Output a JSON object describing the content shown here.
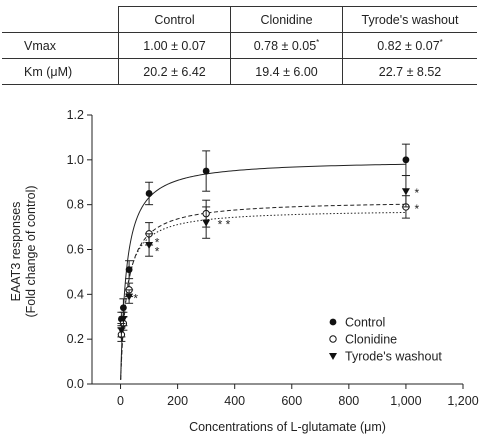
{
  "table": {
    "headers": [
      "",
      "Control",
      "Clonidine",
      "Tyrode's washout"
    ],
    "rows": [
      {
        "label": "Vmax",
        "control": "1.00 ± 0.07",
        "clonidine": "0.78 ± 0.05",
        "clonidine_mark": "*",
        "washout": "0.82 ± 0.07",
        "washout_mark": "*"
      },
      {
        "label": "Km (μM)",
        "control": "20.2 ± 6.42",
        "clonidine": "19.4 ± 6.00",
        "clonidine_mark": "",
        "washout": "22.7 ± 8.52",
        "washout_mark": ""
      }
    ]
  },
  "chart_data": {
    "type": "scatter",
    "xlabel": "Concentrations of L-glutamate (μm)",
    "ylabel_lines": [
      "EAAT3 responses",
      "(Fold change of control)"
    ],
    "xlim": [
      -100,
      1200
    ],
    "ylim": [
      0,
      1.2
    ],
    "xticks": [
      0,
      200,
      400,
      600,
      800,
      1000,
      1200
    ],
    "xtick_labels": [
      "0",
      "200",
      "400",
      "600",
      "800",
      "1,000",
      "1,200"
    ],
    "yticks": [
      0,
      0.2,
      0.4,
      0.6,
      0.8,
      1.0,
      1.2
    ],
    "ytick_labels": [
      "0.0",
      "0.2",
      "0.4",
      "0.6",
      "0.8",
      "1.0",
      "1.2"
    ],
    "legend_position": "bottom-right",
    "series": [
      {
        "name": "Control",
        "marker": "filled-circle",
        "line": "solid",
        "vmax": 1.0,
        "km": 20.2,
        "x": [
          3,
          10,
          30,
          100,
          300,
          1000
        ],
        "y": [
          0.29,
          0.34,
          0.51,
          0.85,
          0.95,
          1.0
        ],
        "err": [
          0.03,
          0.04,
          0.04,
          0.05,
          0.09,
          0.07
        ]
      },
      {
        "name": "Clonidine",
        "marker": "open-circle",
        "line": "dotted",
        "vmax": 0.78,
        "km": 19.4,
        "x": [
          3,
          10,
          30,
          100,
          300,
          1000
        ],
        "y": [
          0.22,
          0.27,
          0.42,
          0.67,
          0.76,
          0.79
        ],
        "err": [
          0.03,
          0.03,
          0.03,
          0.05,
          0.06,
          0.05
        ]
      },
      {
        "name": "Tyrode's washout",
        "marker": "filled-triangle-down",
        "line": "dashed",
        "vmax": 0.82,
        "km": 22.7,
        "x": [
          3,
          10,
          30,
          100,
          300,
          1000
        ],
        "y": [
          0.24,
          0.29,
          0.39,
          0.62,
          0.72,
          0.86
        ],
        "err": [
          0.03,
          0.03,
          0.03,
          0.05,
          0.07,
          0.07
        ]
      }
    ],
    "annotations": [
      {
        "text": "*",
        "x": 45,
        "y": 0.39
      },
      {
        "text": "*",
        "x": 120,
        "y": 0.64
      },
      {
        "text": "*",
        "x": 120,
        "y": 0.6
      },
      {
        "text": "* *",
        "x": 340,
        "y": 0.72
      },
      {
        "text": "*",
        "x": 1030,
        "y": 0.86
      },
      {
        "text": "*",
        "x": 1030,
        "y": 0.79
      }
    ]
  }
}
